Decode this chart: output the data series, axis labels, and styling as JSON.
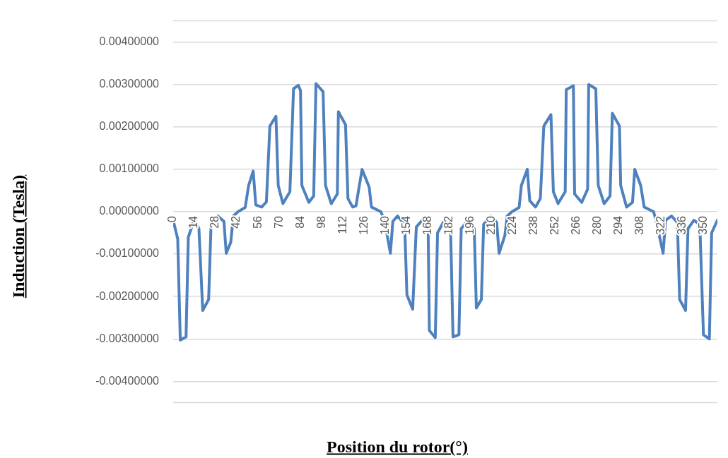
{
  "chart_data": {
    "type": "line",
    "xlabel": "Position du rotor(°)",
    "ylabel": "Induction  (Tesla)",
    "xlim": [
      0,
      359
    ],
    "xticks": [
      0,
      14,
      28,
      42,
      56,
      70,
      84,
      98,
      112,
      126,
      140,
      154,
      168,
      182,
      196,
      210,
      224,
      238,
      252,
      266,
      280,
      294,
      308,
      322,
      336,
      350
    ],
    "ylim": [
      -0.0045,
      0.0045
    ],
    "yticks": [
      {
        "value": -0.004,
        "label": "-0.00400000"
      },
      {
        "value": -0.003,
        "label": "-0.00300000"
      },
      {
        "value": -0.002,
        "label": "-0.00200000"
      },
      {
        "value": -0.001,
        "label": "-0.00100000"
      },
      {
        "value": 0,
        "label": "0.00000000"
      },
      {
        "value": 0.001,
        "label": "0.00100000"
      },
      {
        "value": 0.002,
        "label": "0.00200000"
      },
      {
        "value": 0.003,
        "label": "0.00300000"
      },
      {
        "value": 0.004,
        "label": "0.00400000"
      }
    ],
    "grid": "y",
    "marker": "none",
    "line_style": "solid",
    "series": [
      {
        "color": "#4e81bd",
        "x": [
          0,
          3,
          4.7,
          8.5,
          10,
          14,
          17,
          19.5,
          23.4,
          25,
          29.4,
          33.5,
          35,
          38,
          39.7,
          42.8,
          47.5,
          49.8,
          52.8,
          54.5,
          58.4,
          61.5,
          63.8,
          67.8,
          69.3,
          72.4,
          77,
          79.4,
          82.6,
          84,
          84.9,
          89.5,
          92.7,
          94.2,
          98.9,
          100.5,
          104.3,
          108.3,
          109,
          113.7,
          115.3,
          118.4,
          120.6,
          124.6,
          129.3,
          130.8,
          137,
          139.4,
          143.3,
          144.9,
          148,
          152.7,
          154.2,
          158,
          160.4,
          164.3,
          168.2,
          169,
          172.9,
          174.4,
          179,
          183,
          184.6,
          188.5,
          190,
          194.7,
          198.6,
          200,
          203.3,
          204.8,
          209.5,
          213.4,
          215,
          218.8,
          220.4,
          223.5,
          228.2,
          229.7,
          233.6,
          235.2,
          239,
          242.2,
          244.5,
          249.2,
          250.8,
          253.9,
          258.6,
          259.3,
          264,
          264.8,
          269.5,
          273.4,
          274.1,
          278.8,
          280.4,
          284.3,
          288.2,
          289.7,
          294.4,
          295.2,
          299.1,
          303,
          304.5,
          308.4,
          310.7,
          316.9,
          318.5,
          323.2,
          324.8,
          328.7,
          332.6,
          334.1,
          338,
          339.6,
          343.5,
          347.4,
          349.8,
          353.7,
          355.2,
          359
        ],
        "values": [
          -0.0002,
          -0.00064,
          -0.00303,
          -0.00295,
          -0.0006,
          -0.00017,
          -0.0004,
          -0.00233,
          -0.00207,
          -0.0003,
          -0.0001,
          -0.00023,
          -0.00098,
          -0.00072,
          -0.0001,
          0,
          0.0001,
          0.00062,
          0.00096,
          0.00016,
          0.00011,
          0.00023,
          0.00202,
          0.00225,
          0.00062,
          0.00019,
          0.00047,
          0.0029,
          0.00298,
          0.00286,
          0.00062,
          0.00022,
          0.00037,
          0.00302,
          0.00283,
          0.00062,
          0.00019,
          0.00042,
          0.00236,
          0.00205,
          0.00031,
          0.00011,
          0.00014,
          0.001,
          0.00058,
          0.00011,
          0,
          -0.0002,
          -0.00098,
          -0.00023,
          -0.0001,
          -0.0003,
          -0.00196,
          -0.0023,
          -0.00036,
          -0.0002,
          -0.0004,
          -0.0028,
          -0.00297,
          -0.0005,
          -0.0002,
          -0.0004,
          -0.00295,
          -0.0029,
          -0.0004,
          -0.0002,
          -0.0004,
          -0.00227,
          -0.00207,
          -0.0003,
          -0.0001,
          -0.00025,
          -0.00098,
          -0.00056,
          -0.0001,
          0,
          0.0001,
          0.00062,
          0.001,
          0.00026,
          0.00011,
          0.00031,
          0.00202,
          0.00229,
          0.00047,
          0.00019,
          0.00047,
          0.00288,
          0.00297,
          0.00042,
          0.00022,
          0.00053,
          0.003,
          0.0029,
          0.00062,
          0.00019,
          0.00037,
          0.00232,
          0.00202,
          0.00062,
          0.00011,
          0.00022,
          0.001,
          0.00062,
          0.00011,
          0,
          -0.0002,
          -0.00098,
          -0.0002,
          -0.0001,
          -0.00025,
          -0.00207,
          -0.00233,
          -0.0004,
          -0.0002,
          -0.0003,
          -0.0029,
          -0.003,
          -0.0005,
          -0.0002
        ]
      }
    ]
  }
}
